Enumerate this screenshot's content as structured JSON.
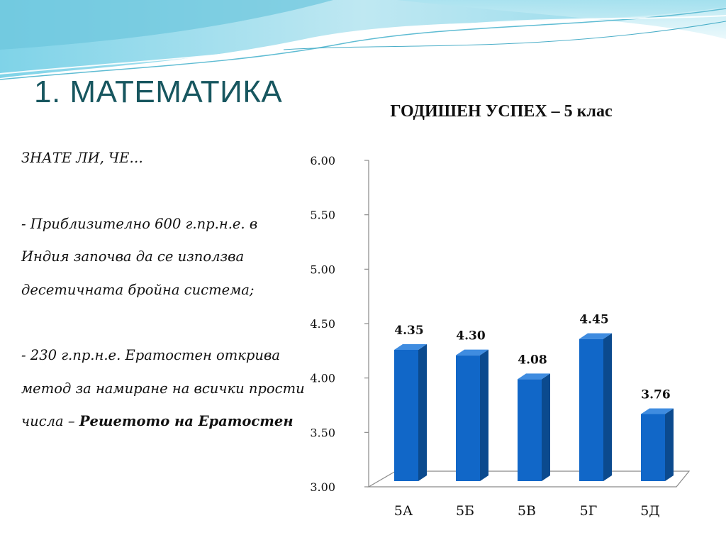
{
  "slide": {
    "title": "1. МАТЕМАТИКА"
  },
  "text": {
    "intro": "ЗНАТЕ ЛИ, ЧЕ…",
    "fact1": "- Приблизително 600 г.пр.н.е. в Индия започва да се използва десетичната бройна система;",
    "fact2_prefix": "- 230 г.пр.н.е. Ератостен открива метод за намиране на всички прости числа – ",
    "fact2_bold": "Решетото на Ератостен"
  },
  "colors": {
    "bar_front": "#1167c8",
    "bar_side": "#0b4a8e",
    "bar_top": "#3f8ce0",
    "title": "#17565f"
  },
  "chart_data": {
    "type": "bar",
    "title": "ГОДИШЕН УСПЕХ – 5 клас",
    "categories": [
      "5А",
      "5Б",
      "5В",
      "5Г",
      "5Д"
    ],
    "values": [
      4.35,
      4.3,
      4.08,
      4.45,
      3.76
    ],
    "value_labels": [
      "4.35",
      "4.30",
      "4.08",
      "4.45",
      "3.76"
    ],
    "ylim": [
      3.0,
      6.0
    ],
    "yticks": [
      "3.00",
      "3.50",
      "4.00",
      "4.50",
      "5.00",
      "5.50",
      "6.00"
    ],
    "xlabel": "",
    "ylabel": "",
    "grid": false,
    "legend": "none",
    "style": "3d"
  }
}
